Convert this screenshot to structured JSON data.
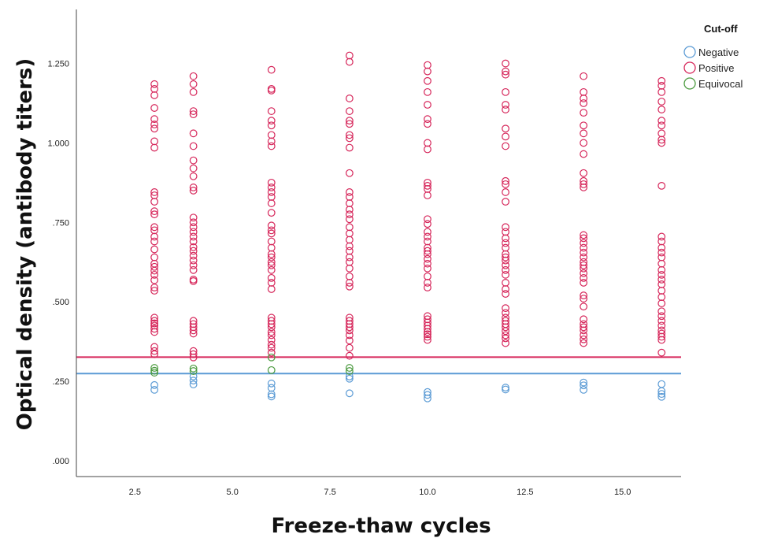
{
  "chart_data": {
    "type": "scatter",
    "title": "",
    "xlabel": "Freeze-thaw cycles",
    "ylabel": "Optical density (antibody titers)",
    "xlim": [
      1.0,
      16.5
    ],
    "ylim": [
      -0.05,
      1.42
    ],
    "x_ticks": [
      2.5,
      5.0,
      7.5,
      10.0,
      12.5,
      15.0
    ],
    "x_tick_labels": [
      "2.5",
      "5.0",
      "7.5",
      "10.0",
      "12.5",
      "15.0"
    ],
    "y_ticks": [
      0.0,
      0.25,
      0.5,
      0.75,
      1.0,
      1.25
    ],
    "y_tick_labels": [
      ".000",
      ".250",
      ".500",
      ".750",
      "1.000",
      "1.250"
    ],
    "grid": false,
    "legend": {
      "title": "Cut-off",
      "placement": "top-right",
      "entries": [
        {
          "label": "Negative",
          "color": "#5b9bd5"
        },
        {
          "label": "Positive",
          "color": "#d6265a"
        },
        {
          "label": "Equivocal",
          "color": "#4a9a3e"
        }
      ]
    },
    "reference_lines": [
      {
        "y": 0.326,
        "color": "#d6265a"
      },
      {
        "y": 0.274,
        "color": "#5b9bd5"
      }
    ],
    "series": [
      {
        "name": "Negative",
        "color": "#5b9bd5",
        "points": [
          [
            3,
            0.238
          ],
          [
            3,
            0.223
          ],
          [
            4,
            0.265
          ],
          [
            4,
            0.252
          ],
          [
            4,
            0.24
          ],
          [
            6,
            0.243
          ],
          [
            6,
            0.229
          ],
          [
            6,
            0.209
          ],
          [
            6,
            0.202
          ],
          [
            8,
            0.265
          ],
          [
            8,
            0.258
          ],
          [
            8,
            0.212
          ],
          [
            10,
            0.216
          ],
          [
            10,
            0.207
          ],
          [
            10,
            0.196
          ],
          [
            12,
            0.23
          ],
          [
            12,
            0.224
          ],
          [
            14,
            0.246
          ],
          [
            14,
            0.237
          ],
          [
            14,
            0.223
          ],
          [
            16,
            0.241
          ],
          [
            16,
            0.219
          ],
          [
            16,
            0.21
          ],
          [
            16,
            0.201
          ]
        ]
      },
      {
        "name": "Positive",
        "color": "#d6265a",
        "points": [
          [
            3,
            1.185
          ],
          [
            3,
            1.17
          ],
          [
            3,
            1.15
          ],
          [
            3,
            1.11
          ],
          [
            3,
            1.075
          ],
          [
            3,
            1.058
          ],
          [
            3,
            1.045
          ],
          [
            3,
            1.005
          ],
          [
            3,
            0.985
          ],
          [
            3,
            0.845
          ],
          [
            3,
            0.835
          ],
          [
            3,
            0.815
          ],
          [
            3,
            0.785
          ],
          [
            3,
            0.775
          ],
          [
            3,
            0.735
          ],
          [
            3,
            0.725
          ],
          [
            3,
            0.705
          ],
          [
            3,
            0.69
          ],
          [
            3,
            0.665
          ],
          [
            3,
            0.64
          ],
          [
            3,
            0.62
          ],
          [
            3,
            0.61
          ],
          [
            3,
            0.598
          ],
          [
            3,
            0.585
          ],
          [
            3,
            0.568
          ],
          [
            3,
            0.545
          ],
          [
            3,
            0.535
          ],
          [
            3,
            0.45
          ],
          [
            3,
            0.44
          ],
          [
            3,
            0.432
          ],
          [
            3,
            0.425
          ],
          [
            3,
            0.415
          ],
          [
            3,
            0.405
          ],
          [
            3,
            0.358
          ],
          [
            3,
            0.345
          ],
          [
            3,
            0.335
          ],
          [
            4,
            1.21
          ],
          [
            4,
            1.185
          ],
          [
            4,
            1.16
          ],
          [
            4,
            1.1
          ],
          [
            4,
            1.09
          ],
          [
            4,
            1.03
          ],
          [
            4,
            0.99
          ],
          [
            4,
            0.945
          ],
          [
            4,
            0.92
          ],
          [
            4,
            0.895
          ],
          [
            4,
            0.86
          ],
          [
            4,
            0.85
          ],
          [
            4,
            0.765
          ],
          [
            4,
            0.75
          ],
          [
            4,
            0.735
          ],
          [
            4,
            0.72
          ],
          [
            4,
            0.705
          ],
          [
            4,
            0.69
          ],
          [
            4,
            0.672
          ],
          [
            4,
            0.66
          ],
          [
            4,
            0.645
          ],
          [
            4,
            0.63
          ],
          [
            4,
            0.615
          ],
          [
            4,
            0.6
          ],
          [
            4,
            0.57
          ],
          [
            4,
            0.565
          ],
          [
            4,
            0.44
          ],
          [
            4,
            0.43
          ],
          [
            4,
            0.42
          ],
          [
            4,
            0.41
          ],
          [
            4,
            0.4
          ],
          [
            4,
            0.345
          ],
          [
            4,
            0.335
          ],
          [
            4,
            0.325
          ],
          [
            6,
            1.23
          ],
          [
            6,
            1.17
          ],
          [
            6,
            1.165
          ],
          [
            6,
            1.1
          ],
          [
            6,
            1.07
          ],
          [
            6,
            1.055
          ],
          [
            6,
            1.025
          ],
          [
            6,
            1.005
          ],
          [
            6,
            0.99
          ],
          [
            6,
            0.875
          ],
          [
            6,
            0.86
          ],
          [
            6,
            0.845
          ],
          [
            6,
            0.83
          ],
          [
            6,
            0.81
          ],
          [
            6,
            0.78
          ],
          [
            6,
            0.74
          ],
          [
            6,
            0.725
          ],
          [
            6,
            0.715
          ],
          [
            6,
            0.69
          ],
          [
            6,
            0.67
          ],
          [
            6,
            0.65
          ],
          [
            6,
            0.64
          ],
          [
            6,
            0.625
          ],
          [
            6,
            0.615
          ],
          [
            6,
            0.6
          ],
          [
            6,
            0.575
          ],
          [
            6,
            0.56
          ],
          [
            6,
            0.54
          ],
          [
            6,
            0.45
          ],
          [
            6,
            0.44
          ],
          [
            6,
            0.43
          ],
          [
            6,
            0.42
          ],
          [
            6,
            0.405
          ],
          [
            6,
            0.395
          ],
          [
            6,
            0.38
          ],
          [
            6,
            0.365
          ],
          [
            6,
            0.355
          ],
          [
            6,
            0.34
          ],
          [
            8,
            1.275
          ],
          [
            8,
            1.255
          ],
          [
            8,
            1.14
          ],
          [
            8,
            1.1
          ],
          [
            8,
            1.07
          ],
          [
            8,
            1.06
          ],
          [
            8,
            1.025
          ],
          [
            8,
            1.015
          ],
          [
            8,
            0.985
          ],
          [
            8,
            0.905
          ],
          [
            8,
            0.845
          ],
          [
            8,
            0.83
          ],
          [
            8,
            0.81
          ],
          [
            8,
            0.79
          ],
          [
            8,
            0.775
          ],
          [
            8,
            0.76
          ],
          [
            8,
            0.735
          ],
          [
            8,
            0.715
          ],
          [
            8,
            0.695
          ],
          [
            8,
            0.675
          ],
          [
            8,
            0.66
          ],
          [
            8,
            0.64
          ],
          [
            8,
            0.625
          ],
          [
            8,
            0.605
          ],
          [
            8,
            0.58
          ],
          [
            8,
            0.56
          ],
          [
            8,
            0.548
          ],
          [
            8,
            0.45
          ],
          [
            8,
            0.44
          ],
          [
            8,
            0.43
          ],
          [
            8,
            0.42
          ],
          [
            8,
            0.41
          ],
          [
            8,
            0.395
          ],
          [
            8,
            0.378
          ],
          [
            8,
            0.355
          ],
          [
            8,
            0.33
          ],
          [
            10,
            1.245
          ],
          [
            10,
            1.225
          ],
          [
            10,
            1.195
          ],
          [
            10,
            1.16
          ],
          [
            10,
            1.12
          ],
          [
            10,
            1.075
          ],
          [
            10,
            1.06
          ],
          [
            10,
            1.0
          ],
          [
            10,
            0.98
          ],
          [
            10,
            0.875
          ],
          [
            10,
            0.865
          ],
          [
            10,
            0.855
          ],
          [
            10,
            0.835
          ],
          [
            10,
            0.76
          ],
          [
            10,
            0.745
          ],
          [
            10,
            0.72
          ],
          [
            10,
            0.705
          ],
          [
            10,
            0.69
          ],
          [
            10,
            0.67
          ],
          [
            10,
            0.66
          ],
          [
            10,
            0.65
          ],
          [
            10,
            0.635
          ],
          [
            10,
            0.62
          ],
          [
            10,
            0.605
          ],
          [
            10,
            0.58
          ],
          [
            10,
            0.56
          ],
          [
            10,
            0.545
          ],
          [
            10,
            0.455
          ],
          [
            10,
            0.445
          ],
          [
            10,
            0.435
          ],
          [
            10,
            0.425
          ],
          [
            10,
            0.415
          ],
          [
            10,
            0.405
          ],
          [
            10,
            0.398
          ],
          [
            10,
            0.39
          ],
          [
            10,
            0.38
          ],
          [
            12,
            1.25
          ],
          [
            12,
            1.225
          ],
          [
            12,
            1.215
          ],
          [
            12,
            1.16
          ],
          [
            12,
            1.12
          ],
          [
            12,
            1.105
          ],
          [
            12,
            1.045
          ],
          [
            12,
            1.02
          ],
          [
            12,
            0.99
          ],
          [
            12,
            0.88
          ],
          [
            12,
            0.87
          ],
          [
            12,
            0.845
          ],
          [
            12,
            0.815
          ],
          [
            12,
            0.735
          ],
          [
            12,
            0.72
          ],
          [
            12,
            0.7
          ],
          [
            12,
            0.685
          ],
          [
            12,
            0.67
          ],
          [
            12,
            0.65
          ],
          [
            12,
            0.64
          ],
          [
            12,
            0.63
          ],
          [
            12,
            0.615
          ],
          [
            12,
            0.6
          ],
          [
            12,
            0.585
          ],
          [
            12,
            0.56
          ],
          [
            12,
            0.54
          ],
          [
            12,
            0.525
          ],
          [
            12,
            0.48
          ],
          [
            12,
            0.465
          ],
          [
            12,
            0.45
          ],
          [
            12,
            0.44
          ],
          [
            12,
            0.43
          ],
          [
            12,
            0.42
          ],
          [
            12,
            0.408
          ],
          [
            12,
            0.395
          ],
          [
            12,
            0.385
          ],
          [
            12,
            0.37
          ],
          [
            14,
            1.21
          ],
          [
            14,
            1.16
          ],
          [
            14,
            1.14
          ],
          [
            14,
            1.125
          ],
          [
            14,
            1.095
          ],
          [
            14,
            1.055
          ],
          [
            14,
            1.03
          ],
          [
            14,
            1.0
          ],
          [
            14,
            0.965
          ],
          [
            14,
            0.905
          ],
          [
            14,
            0.88
          ],
          [
            14,
            0.87
          ],
          [
            14,
            0.86
          ],
          [
            14,
            0.71
          ],
          [
            14,
            0.7
          ],
          [
            14,
            0.685
          ],
          [
            14,
            0.67
          ],
          [
            14,
            0.655
          ],
          [
            14,
            0.64
          ],
          [
            14,
            0.625
          ],
          [
            14,
            0.615
          ],
          [
            14,
            0.605
          ],
          [
            14,
            0.59
          ],
          [
            14,
            0.575
          ],
          [
            14,
            0.56
          ],
          [
            14,
            0.52
          ],
          [
            14,
            0.51
          ],
          [
            14,
            0.485
          ],
          [
            14,
            0.445
          ],
          [
            14,
            0.43
          ],
          [
            14,
            0.42
          ],
          [
            14,
            0.41
          ],
          [
            14,
            0.395
          ],
          [
            14,
            0.382
          ],
          [
            14,
            0.37
          ],
          [
            16,
            1.195
          ],
          [
            16,
            1.18
          ],
          [
            16,
            1.16
          ],
          [
            16,
            1.13
          ],
          [
            16,
            1.105
          ],
          [
            16,
            1.07
          ],
          [
            16,
            1.055
          ],
          [
            16,
            1.03
          ],
          [
            16,
            1.01
          ],
          [
            16,
            1.0
          ],
          [
            16,
            0.865
          ],
          [
            16,
            0.705
          ],
          [
            16,
            0.69
          ],
          [
            16,
            0.67
          ],
          [
            16,
            0.655
          ],
          [
            16,
            0.64
          ],
          [
            16,
            0.62
          ],
          [
            16,
            0.6
          ],
          [
            16,
            0.585
          ],
          [
            16,
            0.57
          ],
          [
            16,
            0.555
          ],
          [
            16,
            0.535
          ],
          [
            16,
            0.515
          ],
          [
            16,
            0.495
          ],
          [
            16,
            0.47
          ],
          [
            16,
            0.455
          ],
          [
            16,
            0.44
          ],
          [
            16,
            0.425
          ],
          [
            16,
            0.41
          ],
          [
            16,
            0.4
          ],
          [
            16,
            0.39
          ],
          [
            16,
            0.38
          ],
          [
            16,
            0.34
          ]
        ]
      },
      {
        "name": "Equivocal",
        "color": "#4a9a3e",
        "points": [
          [
            3,
            0.292
          ],
          [
            3,
            0.283
          ],
          [
            3,
            0.277
          ],
          [
            4,
            0.29
          ],
          [
            4,
            0.282
          ],
          [
            6,
            0.325
          ],
          [
            6,
            0.285
          ],
          [
            8,
            0.292
          ],
          [
            8,
            0.282
          ]
        ]
      }
    ]
  }
}
